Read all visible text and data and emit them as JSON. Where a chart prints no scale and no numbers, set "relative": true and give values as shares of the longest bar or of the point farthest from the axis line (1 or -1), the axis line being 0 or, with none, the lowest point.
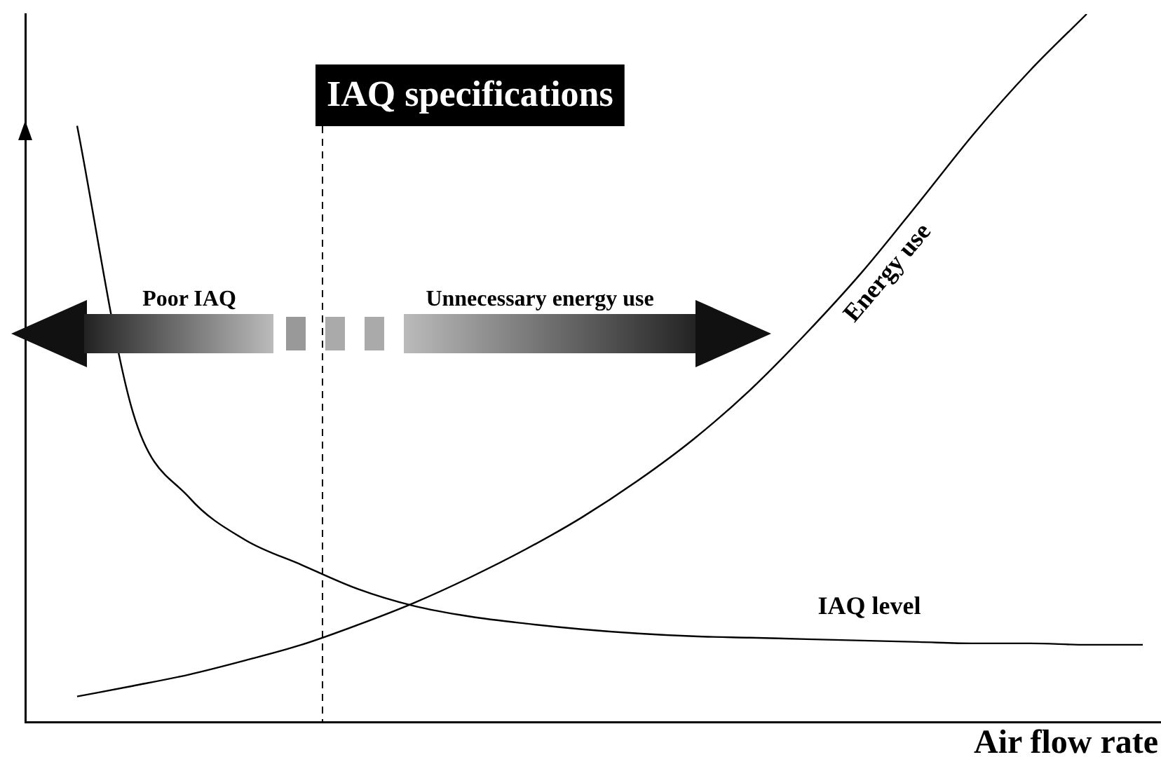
{
  "chart_data": {
    "type": "line",
    "relative": true,
    "xlabel": "Air flow rate",
    "categories": [
      null,
      null,
      null,
      null,
      null,
      null,
      null,
      null,
      null,
      null,
      null,
      null,
      null,
      null,
      null,
      null,
      null,
      null,
      null,
      null
    ],
    "series": [
      {
        "name": "Energy use",
        "color": "#000000",
        "values": [
          0.036,
          0.051,
          0.067,
          0.087,
          0.109,
          0.137,
          0.168,
          0.204,
          0.244,
          0.289,
          0.341,
          0.4,
          0.469,
          0.549,
          0.636,
          0.733,
          0.832,
          0.921,
          1.0,
          null
        ]
      },
      {
        "name": "IAQ level",
        "color": "#000000",
        "values": [
          0.842,
          0.436,
          0.317,
          0.257,
          0.222,
          0.188,
          0.164,
          0.149,
          0.139,
          0.131,
          0.125,
          0.121,
          0.119,
          0.117,
          0.115,
          0.113,
          0.111,
          0.111,
          0.109,
          0.109
        ]
      }
    ],
    "annotations": [
      "IAQ specifications",
      "Poor IAQ",
      "Unnecessary energy use"
    ],
    "legend": false,
    "grid": false,
    "marker": "none",
    "line_style": "solid"
  }
}
